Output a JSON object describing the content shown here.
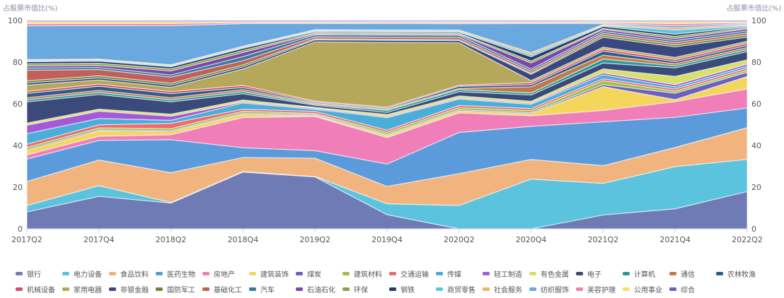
{
  "chart_data": {
    "type": "area",
    "stacked": true,
    "ylabel_left": "占股票市值比(%)",
    "ylabel_right": "占股票市值比(%)",
    "ylim": [
      0,
      100
    ],
    "yticks": [
      "0",
      "20",
      "40",
      "60",
      "80",
      "100"
    ],
    "x": [
      "2017Q2",
      "2017Q4",
      "2018Q2",
      "2018Q4",
      "2019Q2",
      "2019Q4",
      "2020Q2",
      "2020Q4",
      "2021Q2",
      "2021Q4",
      "2022Q2"
    ],
    "legend_placement": "bottom",
    "series": [
      {
        "name": "银行",
        "color": "#6f7bb5",
        "values": [
          8,
          15.6,
          12.5,
          27.5,
          25.4,
          6.8,
          0,
          0,
          7,
          9.5,
          18
        ]
      },
      {
        "name": "电力设备",
        "color": "#5bc3de",
        "values": [
          3,
          5.1,
          0.3,
          0.3,
          0.2,
          5.2,
          11,
          24,
          16,
          20,
          15.5
        ]
      },
      {
        "name": "食品饮料",
        "color": "#f2b47e",
        "values": [
          11.4,
          12.3,
          14.5,
          6.8,
          9,
          8.3,
          15,
          9.5,
          9,
          9.1,
          15.3
        ]
      },
      {
        "name": "医药生物",
        "color": "#5b9bdb",
        "values": [
          10.6,
          9.4,
          16,
          4.7,
          3.7,
          10.7,
          19.4,
          16,
          22.2,
          14.3,
          9.5
        ]
      },
      {
        "name": "房地产",
        "color": "#f07fb9",
        "values": [
          2,
          2,
          2.4,
          14.7,
          16.7,
          12.7,
          9.2,
          5.1,
          5.8,
          7.4,
          9.2
        ]
      },
      {
        "name": "建筑装饰",
        "color": "#f5d65c",
        "values": [
          2,
          2.5,
          1.5,
          1.5,
          0.5,
          1,
          1,
          1,
          12,
          1,
          6
        ]
      },
      {
        "name": "煤炭",
        "color": "#6b5fc4",
        "values": [
          0.5,
          0.5,
          0.5,
          0.5,
          0.5,
          0.5,
          0.5,
          0.5,
          1,
          3,
          2
        ]
      },
      {
        "name": "建筑材料",
        "color": "#9ec04a",
        "values": [
          1,
          1,
          1,
          1,
          0.5,
          1,
          1,
          1,
          2,
          1,
          1
        ]
      },
      {
        "name": "交通运输",
        "color": "#ef6a6a",
        "values": [
          1.5,
          1.5,
          2.5,
          1,
          1,
          1,
          1,
          1,
          1,
          1,
          1
        ]
      },
      {
        "name": "传媒",
        "color": "#4aaed8",
        "values": [
          5,
          3,
          1.5,
          3,
          1,
          6,
          3,
          2,
          2,
          1,
          1
        ]
      },
      {
        "name": "轻工制造",
        "color": "#a45ad8",
        "values": [
          4,
          3.5,
          2,
          0.5,
          0.5,
          0.5,
          0.5,
          0.5,
          1,
          1,
          1
        ]
      },
      {
        "name": "有色金属",
        "color": "#d7e06a",
        "values": [
          1,
          1,
          1,
          1,
          0.5,
          1,
          1,
          1,
          2,
          4,
          2
        ]
      },
      {
        "name": "电子",
        "color": "#3b4a7a",
        "values": [
          10,
          7,
          6,
          3,
          1,
          1,
          2,
          3,
          3,
          4,
          4
        ]
      },
      {
        "name": "计算机",
        "color": "#2a9a9a",
        "values": [
          1,
          1,
          1,
          1,
          0.5,
          1,
          1,
          1,
          2,
          1,
          1
        ]
      },
      {
        "name": "通信",
        "color": "#c07a4a",
        "values": [
          1,
          1,
          1,
          1,
          0.5,
          0.5,
          0.5,
          3,
          2,
          1,
          1
        ]
      },
      {
        "name": "农林牧渔",
        "color": "#2f5d8a",
        "values": [
          2,
          2,
          2,
          1,
          0.5,
          0.5,
          1,
          1,
          2,
          1,
          1
        ]
      },
      {
        "name": "机械设备",
        "color": "#d0506a",
        "values": [
          1,
          1,
          1,
          1,
          0.5,
          0.5,
          0.5,
          1,
          1,
          1,
          1
        ]
      },
      {
        "name": "家用电器",
        "color": "#b5a85a",
        "values": [
          3,
          2,
          2,
          8,
          29,
          31,
          20,
          1,
          1,
          1,
          1
        ]
      },
      {
        "name": "非银金融",
        "color": "#3a4880",
        "values": [
          1,
          1,
          1,
          1,
          1,
          1,
          1,
          3,
          5,
          5,
          2
        ]
      },
      {
        "name": "国防军工",
        "color": "#6a8a3a",
        "values": [
          1,
          1,
          1,
          1,
          0.5,
          0.5,
          0.5,
          0.5,
          1,
          1,
          1
        ]
      },
      {
        "name": "基础化工",
        "color": "#c0605a",
        "values": [
          5,
          3,
          3,
          2,
          1,
          1,
          1,
          1,
          1,
          1,
          1
        ]
      },
      {
        "name": "汽车",
        "color": "#3a7a9a",
        "values": [
          1,
          1,
          1,
          2,
          1,
          1,
          1,
          1,
          1,
          1,
          1
        ]
      },
      {
        "name": "石油石化",
        "color": "#7a4aa8",
        "values": [
          1,
          1,
          2,
          2,
          0.5,
          0.5,
          0.5,
          3,
          1,
          1,
          1
        ]
      },
      {
        "name": "环保",
        "color": "#8aa04a",
        "values": [
          1,
          1,
          1,
          1,
          0.5,
          0.5,
          0.5,
          1,
          0.5,
          1,
          0.5
        ]
      },
      {
        "name": "钢铁",
        "color": "#2a3a6a",
        "values": [
          1,
          1,
          1,
          1,
          0.5,
          0.5,
          0.5,
          2,
          1,
          1,
          0.5
        ]
      },
      {
        "name": "商贸零售",
        "color": "#5ac8e0",
        "values": [
          0.5,
          0.5,
          0.5,
          0.5,
          0.5,
          0.5,
          0.5,
          1,
          0.5,
          2,
          0.5
        ]
      },
      {
        "name": "社会服务",
        "color": "#f0b070",
        "values": [
          0.5,
          0.5,
          0.5,
          0.5,
          0.5,
          0.5,
          0.5,
          1,
          0.5,
          1,
          0.5
        ]
      },
      {
        "name": "纺织服饰",
        "color": "#6aa8e0",
        "values": [
          16,
          16,
          19,
          11,
          3,
          3,
          3,
          14,
          0.5,
          1,
          0.5
        ]
      },
      {
        "name": "美容护理",
        "color": "#f080b0",
        "values": [
          1,
          1,
          1,
          0.5,
          0.5,
          0.5,
          0.5,
          0.5,
          0.5,
          1,
          0.5
        ]
      },
      {
        "name": "公用事业",
        "color": "#f5e070",
        "values": [
          1,
          1,
          1,
          0.5,
          0.5,
          0.5,
          0.5,
          0.5,
          0.5,
          1,
          0.5
        ]
      },
      {
        "name": "综合",
        "color": "#6a60b8",
        "values": [
          0.5,
          0.5,
          0.5,
          0.5,
          0.5,
          0.5,
          0.5,
          0.5,
          0.5,
          0.5,
          0.5
        ]
      }
    ]
  }
}
